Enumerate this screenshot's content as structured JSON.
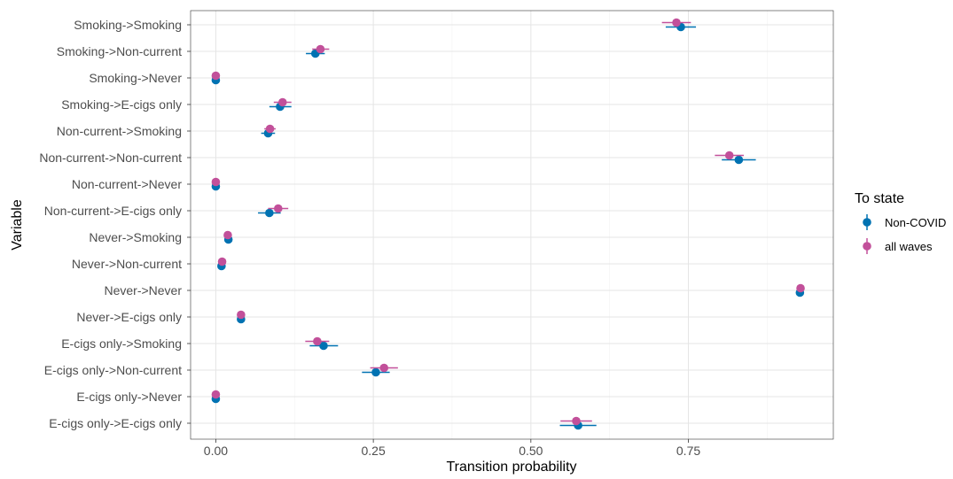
{
  "chart_data": {
    "type": "scatter",
    "subtype": "dot-and-errorbar",
    "xlabel": "Transition probability",
    "ylabel": "Variable",
    "xlim": [
      -0.04,
      0.98
    ],
    "x_ticks": [
      0.0,
      0.25,
      0.5,
      0.75
    ],
    "x_tick_labels": [
      "0.00",
      "0.25",
      "0.50",
      "0.75"
    ],
    "grid": true,
    "legend": {
      "title": "To state",
      "placement": "right"
    },
    "categories": [
      "Smoking->Smoking",
      "Smoking->Non-current",
      "Smoking->Never",
      "Smoking->E-cigs only",
      "Non-current->Smoking",
      "Non-current->Non-current",
      "Non-current->Never",
      "Non-current->E-cigs only",
      "Never->Smoking",
      "Never->Non-current",
      "Never->Never",
      "Never->E-cigs only",
      "E-cigs only->Smoking",
      "E-cigs only->Non-current",
      "E-cigs only->Never",
      "E-cigs only->E-cigs only"
    ],
    "series": [
      {
        "name": "Non-COVID",
        "color": "#0072B2",
        "values": [
          0.738,
          0.158,
          0.0,
          0.102,
          0.083,
          0.83,
          0.0,
          0.085,
          0.02,
          0.009,
          0.927,
          0.04,
          0.171,
          0.254,
          0.0,
          0.575
        ],
        "lower": [
          0.714,
          0.143,
          0.0,
          0.085,
          0.072,
          0.803,
          0.0,
          0.067,
          0.017,
          0.007,
          0.925,
          0.037,
          0.149,
          0.232,
          0.0,
          0.546
        ],
        "upper": [
          0.762,
          0.173,
          0.0,
          0.12,
          0.094,
          0.857,
          0.0,
          0.103,
          0.023,
          0.011,
          0.929,
          0.043,
          0.194,
          0.276,
          0.0,
          0.604
        ]
      },
      {
        "name": "all waves",
        "color": "#C2509A",
        "values": [
          0.731,
          0.166,
          0.0,
          0.106,
          0.086,
          0.815,
          0.0,
          0.099,
          0.019,
          0.01,
          0.928,
          0.04,
          0.161,
          0.267,
          0.0,
          0.572
        ],
        "lower": [
          0.708,
          0.153,
          0.0,
          0.092,
          0.077,
          0.792,
          0.0,
          0.083,
          0.016,
          0.008,
          0.926,
          0.037,
          0.142,
          0.245,
          0.0,
          0.547
        ],
        "upper": [
          0.754,
          0.18,
          0.0,
          0.12,
          0.095,
          0.838,
          0.0,
          0.115,
          0.022,
          0.012,
          0.93,
          0.043,
          0.18,
          0.289,
          0.0,
          0.597
        ]
      }
    ]
  }
}
